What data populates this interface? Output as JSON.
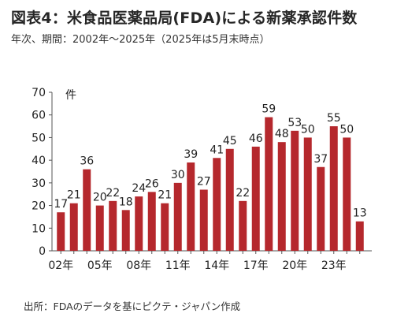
{
  "header": {
    "title": "図表4：米食品医薬品局(FDA)による新薬承認件数",
    "subtitle": "年次、期間：2002年～2025年（2025年は5月末時点）"
  },
  "footer": {
    "source": "出所：FDAのデータを基にピクテ・ジャパン作成"
  },
  "colors": {
    "bar": "#B5282D",
    "axis": "#555555",
    "text": "#222222"
  },
  "chart_data": {
    "type": "bar",
    "title": "図表4：米食品医薬品局(FDA)による新薬承認件数",
    "subtitle": "年次、期間：2002年～2025年（2025年は5月末時点）",
    "xlabel": "",
    "ylabel": "件",
    "ylim": [
      0,
      70
    ],
    "yticks": [
      0,
      10,
      20,
      30,
      40,
      50,
      60,
      70
    ],
    "grid": false,
    "legend": "none",
    "categories": [
      "2002",
      "2003",
      "2004",
      "2005",
      "2006",
      "2007",
      "2008",
      "2009",
      "2010",
      "2011",
      "2012",
      "2013",
      "2014",
      "2015",
      "2016",
      "2017",
      "2018",
      "2019",
      "2020",
      "2021",
      "2022",
      "2023",
      "2024",
      "2025"
    ],
    "x_tick_labels": [
      "02年",
      "05年",
      "08年",
      "11年",
      "14年",
      "17年",
      "20年",
      "23年"
    ],
    "x_tick_categories": [
      "2002",
      "2005",
      "2008",
      "2011",
      "2014",
      "2017",
      "2020",
      "2023"
    ],
    "values": [
      17,
      21,
      36,
      20,
      22,
      18,
      24,
      26,
      21,
      30,
      39,
      27,
      41,
      45,
      22,
      46,
      59,
      48,
      53,
      50,
      37,
      55,
      50,
      13
    ],
    "data_labels": [
      "17",
      "21",
      "36",
      "20",
      "22",
      "18",
      "24",
      "26",
      "21",
      "30",
      "39",
      "27",
      "41",
      "45",
      "22",
      "46",
      "59",
      "48",
      "53",
      "50",
      "37",
      "55",
      "50",
      "13"
    ]
  }
}
